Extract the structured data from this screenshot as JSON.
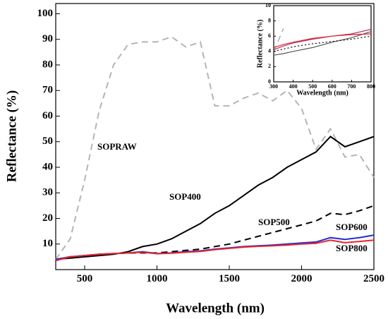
{
  "chart_data": [
    {
      "type": "line",
      "x_label": "Wavelength (nm)",
      "y_label": "Reflectance (%)",
      "xlim": [
        300,
        2500
      ],
      "ylim": [
        0,
        104
      ],
      "xticks": [
        500,
        1000,
        1500,
        2000,
        2500
      ],
      "yticks": [
        10,
        20,
        30,
        40,
        50,
        60,
        70,
        80,
        90,
        100
      ],
      "x": [
        300,
        400,
        500,
        600,
        700,
        800,
        900,
        1000,
        1100,
        1200,
        1300,
        1400,
        1500,
        1600,
        1700,
        1800,
        1900,
        2000,
        2100,
        2200,
        2300,
        2400,
        2500
      ],
      "series": [
        {
          "name": "SOPRAW",
          "color": "#b5b5b5",
          "dash": "dashed",
          "values": [
            4,
            12,
            35,
            62,
            80,
            88,
            89,
            89,
            91,
            87,
            89,
            64,
            64,
            67,
            69,
            66,
            70,
            63,
            47,
            55,
            44,
            45,
            36
          ]
        },
        {
          "name": "SOP400",
          "color": "#000000",
          "dash": "solid",
          "values": [
            4,
            4.5,
            5,
            5.5,
            6,
            7,
            9,
            10,
            12,
            15,
            18,
            22,
            25,
            29,
            33,
            36,
            40,
            43,
            46,
            52,
            48,
            50,
            52
          ]
        },
        {
          "name": "SOP500",
          "color": "#000000",
          "dash": "dashed",
          "values": [
            4,
            5,
            5.5,
            6,
            6.2,
            6.5,
            6.5,
            6.5,
            7,
            7.5,
            8,
            9,
            10,
            11.5,
            13,
            14.5,
            16,
            17.5,
            19,
            22,
            21.5,
            23,
            25
          ]
        },
        {
          "name": "SOP600",
          "color": "#1f2fd6",
          "dash": "solid",
          "values": [
            4,
            5,
            5.5,
            6,
            6.3,
            6.5,
            7,
            6.3,
            6.5,
            7,
            7.3,
            8,
            8.5,
            9,
            9.3,
            9.6,
            10,
            10.4,
            10.8,
            12.5,
            11.8,
            12.5,
            13.5
          ]
        },
        {
          "name": "SOP800",
          "color": "#e8232a",
          "dash": "solid",
          "values": [
            3.5,
            5,
            5.5,
            6,
            6.3,
            6.5,
            6.8,
            6.2,
            6.4,
            6.8,
            7.1,
            7.8,
            8.3,
            8.8,
            9.1,
            9.3,
            9.6,
            10,
            10.3,
            11.5,
            10.5,
            11,
            11.5
          ]
        }
      ]
    },
    {
      "type": "line",
      "x_label": "Wavelength (nm)",
      "y_label": "Reflectance (%)",
      "xlim": [
        300,
        800
      ],
      "ylim": [
        0,
        10
      ],
      "xticks": [
        300,
        400,
        500,
        600,
        700,
        800
      ],
      "yticks": [
        0,
        2,
        4,
        6,
        8,
        10
      ],
      "x": [
        300,
        350,
        400,
        500,
        600,
        700,
        800
      ],
      "series": [
        {
          "color": "#999999",
          "dash": "dashed",
          "values": [
            4,
            7,
            null,
            null,
            null,
            null,
            null
          ]
        },
        {
          "color": "#555555",
          "dash": "solid",
          "values": [
            3.5,
            3.7,
            4,
            4.5,
            5.2,
            5.8,
            6.6
          ]
        },
        {
          "color": "#000000",
          "dash": "dotted",
          "values": [
            4,
            4.3,
            4.6,
            5,
            5.3,
            5.6,
            6
          ]
        },
        {
          "color": "#b0306a",
          "dash": "solid",
          "values": [
            4.2,
            4.7,
            5.1,
            5.6,
            6,
            6.3,
            6.9
          ]
        },
        {
          "color": "#e8232a",
          "dash": "solid",
          "values": [
            4.5,
            4.9,
            5.2,
            5.7,
            6,
            6.2,
            6.3
          ]
        }
      ]
    }
  ]
}
